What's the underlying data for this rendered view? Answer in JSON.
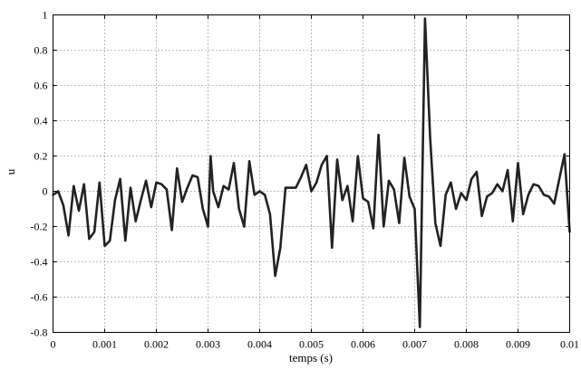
{
  "chart_data": {
    "type": "line",
    "title": "",
    "xlabel": "temps (s)",
    "ylabel": "u",
    "xlim": [
      0,
      0.01
    ],
    "ylim": [
      -0.8,
      1
    ],
    "grid": true,
    "x_ticks": [
      0,
      0.001,
      0.002,
      0.003,
      0.004,
      0.005,
      0.006,
      0.007,
      0.008,
      0.009,
      0.01
    ],
    "x_tick_labels": [
      "0",
      "0.001",
      "0.002",
      "0.003",
      "0.004",
      "0.005",
      "0.006",
      "0.007",
      "0.008",
      "0.009",
      "0.01"
    ],
    "y_ticks": [
      -0.8,
      -0.6,
      -0.4,
      -0.2,
      0,
      0.2,
      0.4,
      0.6,
      0.8,
      1
    ],
    "y_tick_labels": [
      "-0.8",
      "-0.6",
      "-0.4",
      "-0.2",
      "0",
      "0.2",
      "0.4",
      "0.6",
      "0.8",
      "1"
    ],
    "series": [
      {
        "color": "#222222",
        "points": [
          [
            0.0,
            -0.02
          ],
          [
            0.0001,
            0.0
          ],
          [
            0.0002,
            -0.08
          ],
          [
            0.0003,
            -0.25
          ],
          [
            0.0004,
            0.03
          ],
          [
            0.0005,
            -0.11
          ],
          [
            0.0006,
            0.04
          ],
          [
            0.0007,
            -0.27
          ],
          [
            0.0008,
            -0.23
          ],
          [
            0.0009,
            0.05
          ],
          [
            0.001,
            -0.31
          ],
          [
            0.0011,
            -0.28
          ],
          [
            0.0012,
            -0.05
          ],
          [
            0.0013,
            0.07
          ],
          [
            0.0014,
            -0.28
          ],
          [
            0.0015,
            0.02
          ],
          [
            0.0016,
            -0.17
          ],
          [
            0.0017,
            -0.05
          ],
          [
            0.0018,
            0.06
          ],
          [
            0.0019,
            -0.09
          ],
          [
            0.002,
            0.05
          ],
          [
            0.0021,
            0.04
          ],
          [
            0.0022,
            0.01
          ],
          [
            0.0023,
            -0.22
          ],
          [
            0.0024,
            0.13
          ],
          [
            0.0025,
            -0.06
          ],
          [
            0.0026,
            0.02
          ],
          [
            0.0027,
            0.09
          ],
          [
            0.0028,
            0.08
          ],
          [
            0.0029,
            -0.1
          ],
          [
            0.003,
            -0.2
          ],
          [
            0.00305,
            0.2
          ],
          [
            0.0031,
            0.0
          ],
          [
            0.0032,
            -0.09
          ],
          [
            0.0033,
            0.03
          ],
          [
            0.0034,
            0.01
          ],
          [
            0.0035,
            0.16
          ],
          [
            0.0036,
            -0.1
          ],
          [
            0.0037,
            -0.2
          ],
          [
            0.0038,
            0.17
          ],
          [
            0.0039,
            -0.02
          ],
          [
            0.004,
            0.0
          ],
          [
            0.0041,
            -0.02
          ],
          [
            0.0042,
            -0.13
          ],
          [
            0.0043,
            -0.48
          ],
          [
            0.0044,
            -0.32
          ],
          [
            0.0045,
            0.02
          ],
          [
            0.0046,
            0.02
          ],
          [
            0.0047,
            0.02
          ],
          [
            0.0048,
            0.08
          ],
          [
            0.0049,
            0.15
          ],
          [
            0.005,
            0.0
          ],
          [
            0.0051,
            0.05
          ],
          [
            0.0052,
            0.15
          ],
          [
            0.0053,
            0.2
          ],
          [
            0.0054,
            -0.32
          ],
          [
            0.0055,
            0.18
          ],
          [
            0.0056,
            -0.05
          ],
          [
            0.0057,
            0.03
          ],
          [
            0.0058,
            -0.17
          ],
          [
            0.0059,
            0.2
          ],
          [
            0.006,
            -0.04
          ],
          [
            0.0061,
            -0.06
          ],
          [
            0.0062,
            -0.21
          ],
          [
            0.0063,
            0.32
          ],
          [
            0.0064,
            -0.2
          ],
          [
            0.0065,
            0.06
          ],
          [
            0.0066,
            0.01
          ],
          [
            0.0067,
            -0.18
          ],
          [
            0.0068,
            0.19
          ],
          [
            0.0069,
            -0.03
          ],
          [
            0.007,
            -0.1
          ],
          [
            0.0071,
            -0.77
          ],
          [
            0.0072,
            0.98
          ],
          [
            0.0073,
            0.3
          ],
          [
            0.0074,
            -0.18
          ],
          [
            0.0075,
            -0.31
          ],
          [
            0.0076,
            -0.02
          ],
          [
            0.0077,
            0.05
          ],
          [
            0.0078,
            -0.1
          ],
          [
            0.0079,
            -0.01
          ],
          [
            0.008,
            -0.05
          ],
          [
            0.0081,
            0.07
          ],
          [
            0.0082,
            0.11
          ],
          [
            0.0083,
            -0.14
          ],
          [
            0.0084,
            -0.03
          ],
          [
            0.0085,
            -0.01
          ],
          [
            0.0086,
            0.04
          ],
          [
            0.0087,
            0.0
          ],
          [
            0.0088,
            0.12
          ],
          [
            0.0089,
            -0.17
          ],
          [
            0.009,
            0.16
          ],
          [
            0.0091,
            -0.13
          ],
          [
            0.0092,
            -0.02
          ],
          [
            0.0093,
            0.04
          ],
          [
            0.0094,
            0.03
          ],
          [
            0.0095,
            -0.02
          ],
          [
            0.0096,
            -0.03
          ],
          [
            0.0097,
            -0.07
          ],
          [
            0.0098,
            0.07
          ],
          [
            0.0099,
            0.21
          ],
          [
            0.01,
            -0.23
          ]
        ]
      }
    ]
  }
}
